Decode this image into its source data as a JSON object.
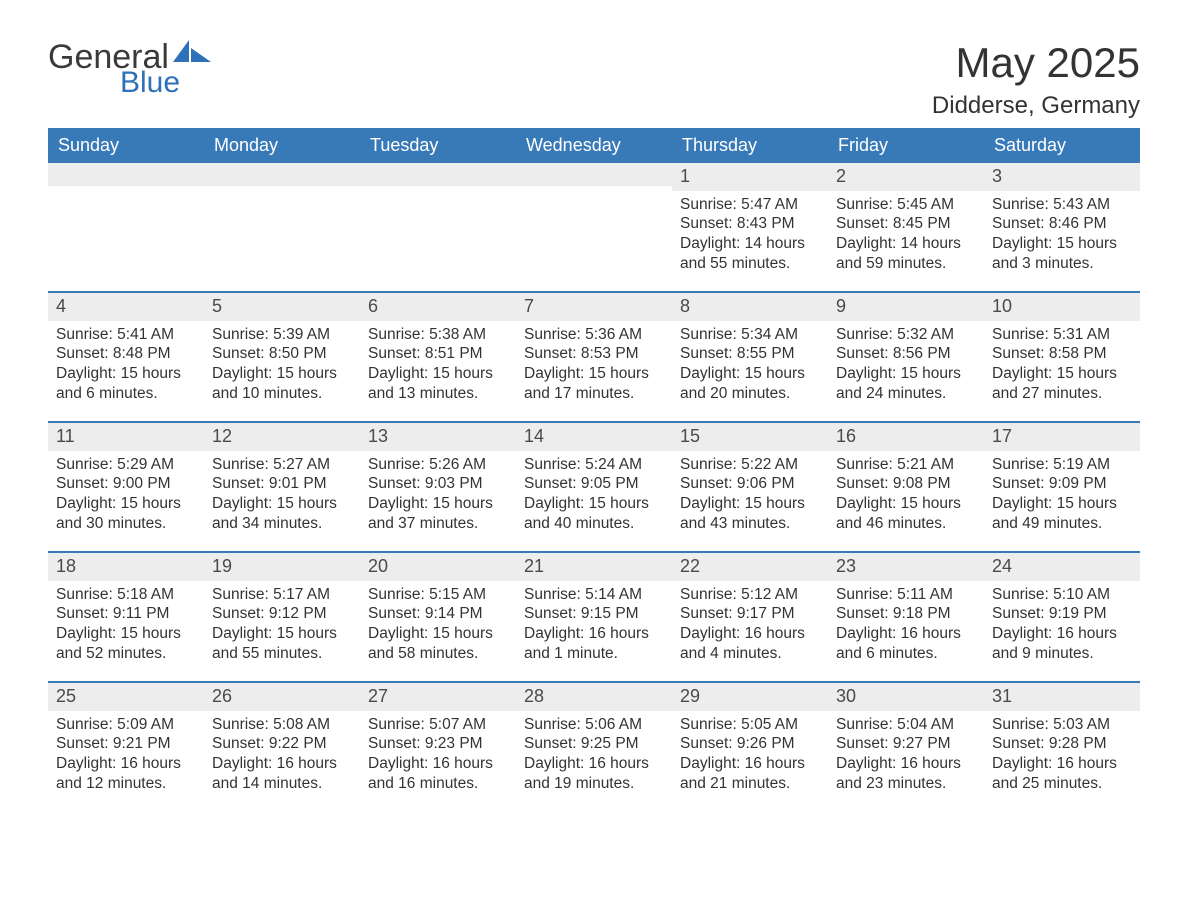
{
  "logo": {
    "general": "General",
    "blue": "Blue"
  },
  "title": "May 2025",
  "location": "Didderse, Germany",
  "weekdays": [
    "Sunday",
    "Monday",
    "Tuesday",
    "Wednesday",
    "Thursday",
    "Friday",
    "Saturday"
  ],
  "colors": {
    "header_bg": "#3879b8",
    "header_text": "#ffffff",
    "daynum_bg": "#ededed",
    "row_divider": "#3879b8",
    "text": "#333333",
    "logo_general": "#3a3a3a",
    "logo_blue": "#2f71b8",
    "logo_shape": "#2f71b8"
  },
  "weeks": [
    [
      {
        "n": "",
        "lines": []
      },
      {
        "n": "",
        "lines": []
      },
      {
        "n": "",
        "lines": []
      },
      {
        "n": "",
        "lines": []
      },
      {
        "n": "1",
        "lines": [
          "Sunrise: 5:47 AM",
          "Sunset: 8:43 PM",
          "Daylight: 14 hours",
          "and 55 minutes."
        ]
      },
      {
        "n": "2",
        "lines": [
          "Sunrise: 5:45 AM",
          "Sunset: 8:45 PM",
          "Daylight: 14 hours",
          "and 59 minutes."
        ]
      },
      {
        "n": "3",
        "lines": [
          "Sunrise: 5:43 AM",
          "Sunset: 8:46 PM",
          "Daylight: 15 hours",
          "and 3 minutes."
        ]
      }
    ],
    [
      {
        "n": "4",
        "lines": [
          "Sunrise: 5:41 AM",
          "Sunset: 8:48 PM",
          "Daylight: 15 hours",
          "and 6 minutes."
        ]
      },
      {
        "n": "5",
        "lines": [
          "Sunrise: 5:39 AM",
          "Sunset: 8:50 PM",
          "Daylight: 15 hours",
          "and 10 minutes."
        ]
      },
      {
        "n": "6",
        "lines": [
          "Sunrise: 5:38 AM",
          "Sunset: 8:51 PM",
          "Daylight: 15 hours",
          "and 13 minutes."
        ]
      },
      {
        "n": "7",
        "lines": [
          "Sunrise: 5:36 AM",
          "Sunset: 8:53 PM",
          "Daylight: 15 hours",
          "and 17 minutes."
        ]
      },
      {
        "n": "8",
        "lines": [
          "Sunrise: 5:34 AM",
          "Sunset: 8:55 PM",
          "Daylight: 15 hours",
          "and 20 minutes."
        ]
      },
      {
        "n": "9",
        "lines": [
          "Sunrise: 5:32 AM",
          "Sunset: 8:56 PM",
          "Daylight: 15 hours",
          "and 24 minutes."
        ]
      },
      {
        "n": "10",
        "lines": [
          "Sunrise: 5:31 AM",
          "Sunset: 8:58 PM",
          "Daylight: 15 hours",
          "and 27 minutes."
        ]
      }
    ],
    [
      {
        "n": "11",
        "lines": [
          "Sunrise: 5:29 AM",
          "Sunset: 9:00 PM",
          "Daylight: 15 hours",
          "and 30 minutes."
        ]
      },
      {
        "n": "12",
        "lines": [
          "Sunrise: 5:27 AM",
          "Sunset: 9:01 PM",
          "Daylight: 15 hours",
          "and 34 minutes."
        ]
      },
      {
        "n": "13",
        "lines": [
          "Sunrise: 5:26 AM",
          "Sunset: 9:03 PM",
          "Daylight: 15 hours",
          "and 37 minutes."
        ]
      },
      {
        "n": "14",
        "lines": [
          "Sunrise: 5:24 AM",
          "Sunset: 9:05 PM",
          "Daylight: 15 hours",
          "and 40 minutes."
        ]
      },
      {
        "n": "15",
        "lines": [
          "Sunrise: 5:22 AM",
          "Sunset: 9:06 PM",
          "Daylight: 15 hours",
          "and 43 minutes."
        ]
      },
      {
        "n": "16",
        "lines": [
          "Sunrise: 5:21 AM",
          "Sunset: 9:08 PM",
          "Daylight: 15 hours",
          "and 46 minutes."
        ]
      },
      {
        "n": "17",
        "lines": [
          "Sunrise: 5:19 AM",
          "Sunset: 9:09 PM",
          "Daylight: 15 hours",
          "and 49 minutes."
        ]
      }
    ],
    [
      {
        "n": "18",
        "lines": [
          "Sunrise: 5:18 AM",
          "Sunset: 9:11 PM",
          "Daylight: 15 hours",
          "and 52 minutes."
        ]
      },
      {
        "n": "19",
        "lines": [
          "Sunrise: 5:17 AM",
          "Sunset: 9:12 PM",
          "Daylight: 15 hours",
          "and 55 minutes."
        ]
      },
      {
        "n": "20",
        "lines": [
          "Sunrise: 5:15 AM",
          "Sunset: 9:14 PM",
          "Daylight: 15 hours",
          "and 58 minutes."
        ]
      },
      {
        "n": "21",
        "lines": [
          "Sunrise: 5:14 AM",
          "Sunset: 9:15 PM",
          "Daylight: 16 hours",
          "and 1 minute."
        ]
      },
      {
        "n": "22",
        "lines": [
          "Sunrise: 5:12 AM",
          "Sunset: 9:17 PM",
          "Daylight: 16 hours",
          "and 4 minutes."
        ]
      },
      {
        "n": "23",
        "lines": [
          "Sunrise: 5:11 AM",
          "Sunset: 9:18 PM",
          "Daylight: 16 hours",
          "and 6 minutes."
        ]
      },
      {
        "n": "24",
        "lines": [
          "Sunrise: 5:10 AM",
          "Sunset: 9:19 PM",
          "Daylight: 16 hours",
          "and 9 minutes."
        ]
      }
    ],
    [
      {
        "n": "25",
        "lines": [
          "Sunrise: 5:09 AM",
          "Sunset: 9:21 PM",
          "Daylight: 16 hours",
          "and 12 minutes."
        ]
      },
      {
        "n": "26",
        "lines": [
          "Sunrise: 5:08 AM",
          "Sunset: 9:22 PM",
          "Daylight: 16 hours",
          "and 14 minutes."
        ]
      },
      {
        "n": "27",
        "lines": [
          "Sunrise: 5:07 AM",
          "Sunset: 9:23 PM",
          "Daylight: 16 hours",
          "and 16 minutes."
        ]
      },
      {
        "n": "28",
        "lines": [
          "Sunrise: 5:06 AM",
          "Sunset: 9:25 PM",
          "Daylight: 16 hours",
          "and 19 minutes."
        ]
      },
      {
        "n": "29",
        "lines": [
          "Sunrise: 5:05 AM",
          "Sunset: 9:26 PM",
          "Daylight: 16 hours",
          "and 21 minutes."
        ]
      },
      {
        "n": "30",
        "lines": [
          "Sunrise: 5:04 AM",
          "Sunset: 9:27 PM",
          "Daylight: 16 hours",
          "and 23 minutes."
        ]
      },
      {
        "n": "31",
        "lines": [
          "Sunrise: 5:03 AM",
          "Sunset: 9:28 PM",
          "Daylight: 16 hours",
          "and 25 minutes."
        ]
      }
    ]
  ]
}
